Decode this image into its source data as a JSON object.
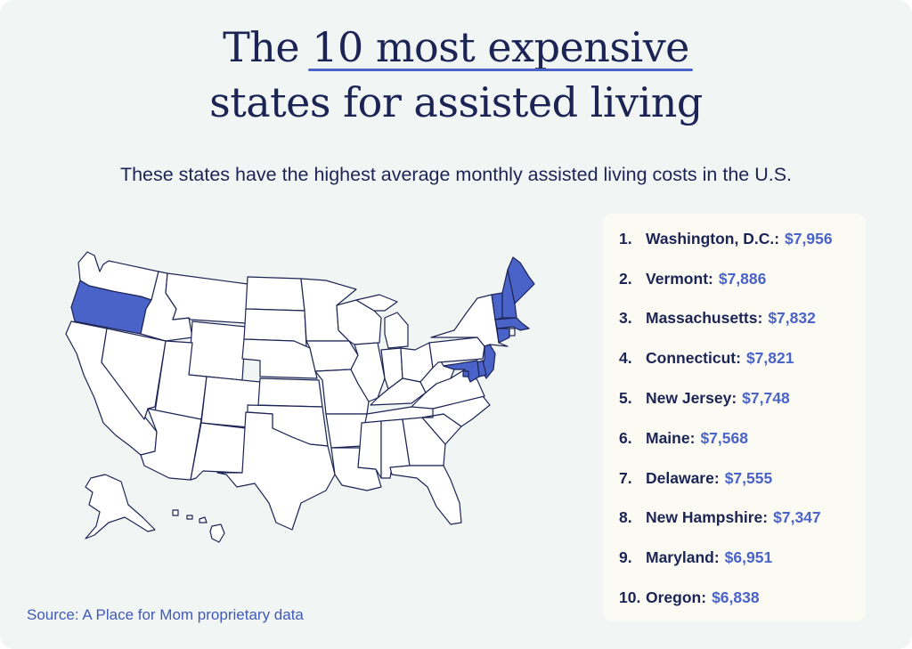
{
  "title": {
    "line1_prefix": "The ",
    "line1_highlight": "10 most expensive",
    "line2": "states for assisted living"
  },
  "subtitle": "These states have the highest average monthly assisted living costs in the U.S.",
  "source": "Source: A Place for Mom proprietary data",
  "colors": {
    "background": "#f1f5f3",
    "navy": "#1c2455",
    "accent": "#4a63c9",
    "state_fill": "#ffffff",
    "list_card": "#fbfbf4"
  },
  "map": {
    "highlighted_states": [
      "Oregon",
      "Maine",
      "Vermont",
      "New Hampshire",
      "Massachusetts",
      "Connecticut",
      "New Jersey",
      "Delaware",
      "Maryland",
      "Washington, D.C."
    ]
  },
  "ranking": [
    {
      "rank": "1.",
      "state": "Washington, D.C.:",
      "cost": "$7,956"
    },
    {
      "rank": "2.",
      "state": "Vermont:",
      "cost": "$7,886"
    },
    {
      "rank": "3.",
      "state": "Massachusetts:",
      "cost": "$7,832"
    },
    {
      "rank": "4.",
      "state": "Connecticut:",
      "cost": "$7,821"
    },
    {
      "rank": "5.",
      "state": "New Jersey:",
      "cost": "$7,748"
    },
    {
      "rank": "6.",
      "state": "Maine:",
      "cost": "$7,568"
    },
    {
      "rank": "7.",
      "state": "Delaware:",
      "cost": "$7,555"
    },
    {
      "rank": "8.",
      "state": "New Hampshire:",
      "cost": "$7,347"
    },
    {
      "rank": "9.",
      "state": "Maryland:",
      "cost": "$6,951"
    },
    {
      "rank": "10.",
      "state": "Oregon:",
      "cost": "$6,838"
    }
  ]
}
